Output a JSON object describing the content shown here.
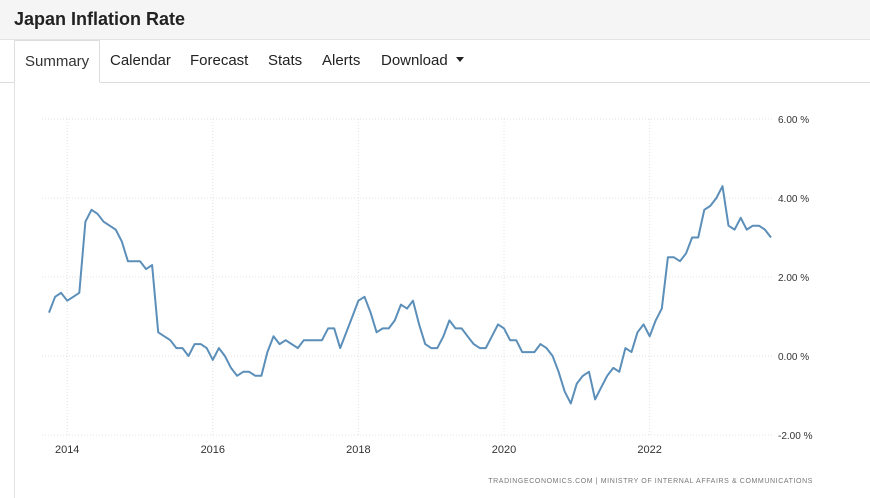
{
  "header": {
    "title": "Japan Inflation Rate"
  },
  "tabs": [
    {
      "label": "Summary",
      "active": true
    },
    {
      "label": "Calendar"
    },
    {
      "label": "Forecast"
    },
    {
      "label": "Stats"
    },
    {
      "label": "Alerts"
    },
    {
      "label": "Download",
      "icon": "caret-down-icon"
    }
  ],
  "chart_data": {
    "type": "line",
    "title": "",
    "xlabel": "",
    "ylabel": "",
    "ylim": [
      -2,
      6
    ],
    "xlim": [
      "2013-10",
      "2023-09"
    ],
    "grid": true,
    "y_ticks": [
      {
        "value": 6,
        "label": "6.00 %"
      },
      {
        "value": 4,
        "label": "4.00 %"
      },
      {
        "value": 2,
        "label": "2.00 %"
      },
      {
        "value": 0,
        "label": "0.00 %"
      },
      {
        "value": -2,
        "label": "-2.00 %"
      }
    ],
    "x_ticks": [
      {
        "value": "2014-01",
        "label": "2014"
      },
      {
        "value": "2016-01",
        "label": "2016"
      },
      {
        "value": "2018-01",
        "label": "2018"
      },
      {
        "value": "2020-01",
        "label": "2020"
      },
      {
        "value": "2022-01",
        "label": "2022"
      }
    ],
    "line_color": "#5b8fb9",
    "series": [
      {
        "x": [
          "2013-10",
          "2013-11",
          "2013-12",
          "2014-01",
          "2014-02",
          "2014-03",
          "2014-04",
          "2014-05",
          "2014-06",
          "2014-07",
          "2014-08",
          "2014-09",
          "2014-10",
          "2014-11",
          "2014-12",
          "2015-01",
          "2015-02",
          "2015-03",
          "2015-04",
          "2015-05",
          "2015-06",
          "2015-07",
          "2015-08",
          "2015-09",
          "2015-10",
          "2015-11",
          "2015-12",
          "2016-01",
          "2016-02",
          "2016-03",
          "2016-04",
          "2016-05",
          "2016-06",
          "2016-07",
          "2016-08",
          "2016-09",
          "2016-10",
          "2016-11",
          "2016-12",
          "2017-01",
          "2017-02",
          "2017-03",
          "2017-04",
          "2017-05",
          "2017-06",
          "2017-07",
          "2017-08",
          "2017-09",
          "2017-10",
          "2017-11",
          "2017-12",
          "2018-01",
          "2018-02",
          "2018-03",
          "2018-04",
          "2018-05",
          "2018-06",
          "2018-07",
          "2018-08",
          "2018-09",
          "2018-10",
          "2018-11",
          "2018-12",
          "2019-01",
          "2019-02",
          "2019-03",
          "2019-04",
          "2019-05",
          "2019-06",
          "2019-07",
          "2019-08",
          "2019-09",
          "2019-10",
          "2019-11",
          "2019-12",
          "2020-01",
          "2020-02",
          "2020-03",
          "2020-04",
          "2020-05",
          "2020-06",
          "2020-07",
          "2020-08",
          "2020-09",
          "2020-10",
          "2020-11",
          "2020-12",
          "2021-01",
          "2021-02",
          "2021-03",
          "2021-04",
          "2021-05",
          "2021-06",
          "2021-07",
          "2021-08",
          "2021-09",
          "2021-10",
          "2021-11",
          "2021-12",
          "2022-01",
          "2022-02",
          "2022-03",
          "2022-04",
          "2022-05",
          "2022-06",
          "2022-07",
          "2022-08",
          "2022-09",
          "2022-10",
          "2022-11",
          "2022-12",
          "2023-01",
          "2023-02",
          "2023-03",
          "2023-04",
          "2023-05",
          "2023-06",
          "2023-07",
          "2023-08",
          "2023-09"
        ],
        "values": [
          1.1,
          1.5,
          1.6,
          1.4,
          1.5,
          1.6,
          3.4,
          3.7,
          3.6,
          3.4,
          3.3,
          3.2,
          2.9,
          2.4,
          2.4,
          2.4,
          2.2,
          2.3,
          0.6,
          0.5,
          0.4,
          0.2,
          0.2,
          0.0,
          0.3,
          0.3,
          0.2,
          -0.1,
          0.2,
          0.0,
          -0.3,
          -0.5,
          -0.4,
          -0.4,
          -0.5,
          -0.5,
          0.1,
          0.5,
          0.3,
          0.4,
          0.3,
          0.2,
          0.4,
          0.4,
          0.4,
          0.4,
          0.7,
          0.7,
          0.2,
          0.6,
          1.0,
          1.4,
          1.5,
          1.1,
          0.6,
          0.7,
          0.7,
          0.9,
          1.3,
          1.2,
          1.4,
          0.8,
          0.3,
          0.2,
          0.2,
          0.5,
          0.9,
          0.7,
          0.7,
          0.5,
          0.3,
          0.2,
          0.2,
          0.5,
          0.8,
          0.7,
          0.4,
          0.4,
          0.1,
          0.1,
          0.1,
          0.3,
          0.2,
          0.0,
          -0.4,
          -0.9,
          -1.2,
          -0.7,
          -0.5,
          -0.4,
          -1.1,
          -0.8,
          -0.5,
          -0.3,
          -0.4,
          0.2,
          0.1,
          0.6,
          0.8,
          0.5,
          0.9,
          1.2,
          2.5,
          2.5,
          2.4,
          2.6,
          3.0,
          3.0,
          3.7,
          3.8,
          4.0,
          4.3,
          3.3,
          3.2,
          3.5,
          3.2,
          3.3,
          3.3,
          3.2,
          3.0
        ]
      }
    ],
    "credit": "TRADINGECONOMICS.COM  |  MINISTRY OF INTERNAL AFFAIRS & COMMUNICATIONS"
  }
}
